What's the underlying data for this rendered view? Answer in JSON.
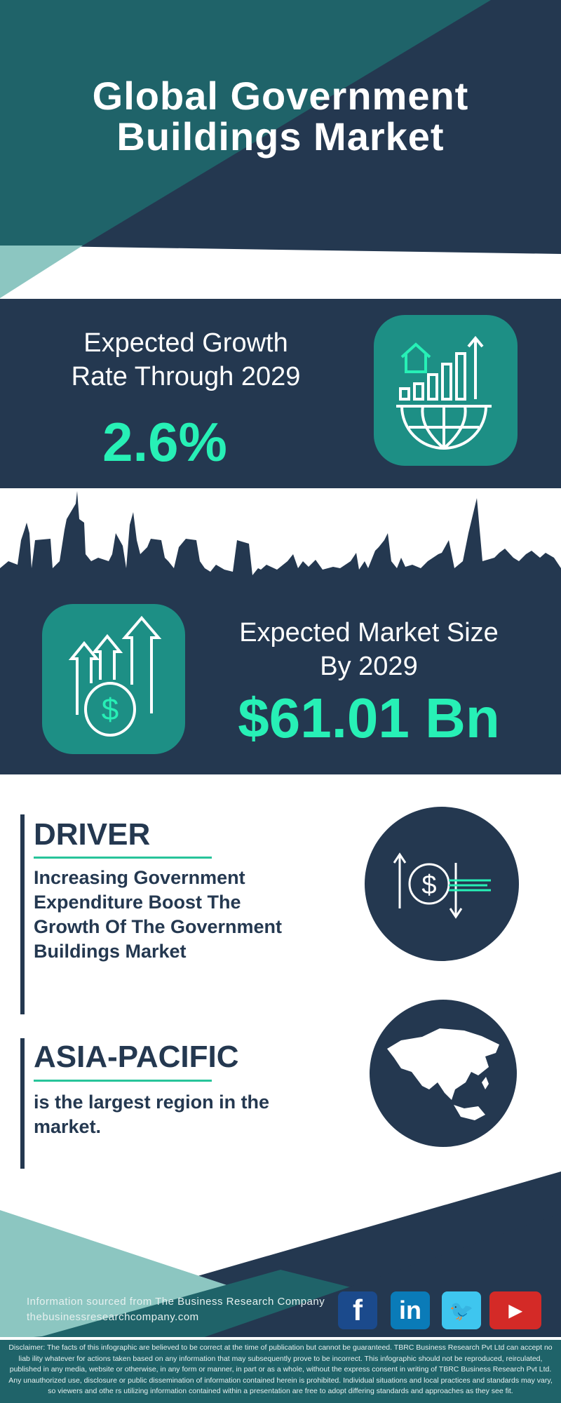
{
  "header": {
    "title_line1": "Global Government",
    "title_line2": "Buildings Market"
  },
  "growth": {
    "label_line1": "Expected Growth",
    "label_line2": "Rate Through 2029",
    "value": "2.6%",
    "icon": "globe-growth-chart-icon"
  },
  "market_size": {
    "label_line1": "Expected Market Size",
    "label_line2": "By 2029",
    "value": "$61.01 Bn",
    "icon": "money-growth-arrows-icon"
  },
  "driver": {
    "heading": "DRIVER",
    "lines": [
      "Increasing Government",
      "Expenditure Boost The",
      "Growth Of The Government",
      "Buildings Market"
    ],
    "icon": "dollar-exchange-icon"
  },
  "region": {
    "heading": "ASIA-PACIFIC",
    "lines": [
      "is the largest region in the",
      "market."
    ],
    "icon": "asia-map-icon"
  },
  "footer": {
    "source": "Information sourced from The Business Research Company",
    "website": "thebusinessresearchcompany.com",
    "social": [
      {
        "name": "facebook",
        "glyph": "f",
        "color": "#1b4a8c"
      },
      {
        "name": "linkedin",
        "glyph": "in",
        "color": "#0a7bb8"
      },
      {
        "name": "twitter",
        "glyph": "🐦",
        "color": "#3ec6ef"
      },
      {
        "name": "youtube",
        "glyph": "▶",
        "color": "#d42a27"
      }
    ],
    "disclaimer": "Disclaimer: The facts of this infographic are believed to be correct at the time of publication but cannot be guaranteed. TBRC Business Research Pvt Ltd can accept no liab ility whatever for actions taken based on any information that may subsequently prove to be incorrect. This infographic should not be reproduced, reirculated, published in any media, website or otherwise, in any form or manner, in part or as a whole, without the express consent in writing of TBRC Business Research Pvt Ltd. Any unauthorized use, disclosure or public dissemination of information contained herein is prohibited. Individual situations and local practices and standards may vary, so viewers and othe rs utilizing information contained within a presentation are free to adopt differing standards and approaches as they see fit."
  },
  "colors": {
    "navy": "#243850",
    "teal": "#1f6369",
    "light_teal": "#8cc6c1",
    "icon_box": "#1d8f85",
    "accent_green": "#27f0b6"
  }
}
